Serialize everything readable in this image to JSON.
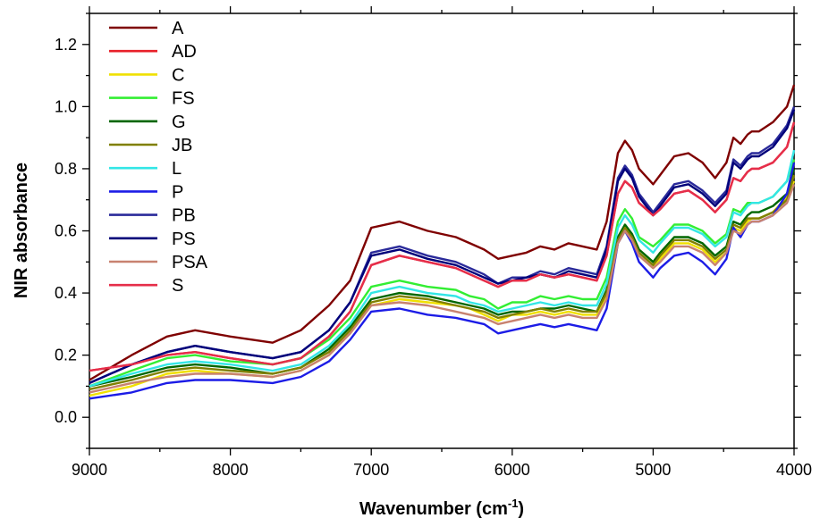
{
  "chart_data": {
    "type": "line",
    "xlabel": "Wavenumber (cm",
    "xlabel_sup": "-1",
    "xlabel_end": ")",
    "ylabel": "NIR absorbance",
    "xlim": [
      9000,
      4000
    ],
    "ylim": [
      -0.1,
      1.3
    ],
    "x_reversed": true,
    "grid": false,
    "legend_position": "top-left",
    "xticks": [
      9000,
      8000,
      7000,
      6000,
      5000,
      4000
    ],
    "yticks": [
      0.0,
      0.2,
      0.4,
      0.6,
      0.8,
      1.0,
      1.2
    ],
    "ytick_labels": [
      "0.0",
      "0.2",
      "0.4",
      "0.6",
      "0.8",
      "1.0",
      "1.2"
    ],
    "x": [
      9000,
      8700,
      8450,
      8250,
      8000,
      7700,
      7500,
      7300,
      7150,
      7000,
      6800,
      6600,
      6400,
      6300,
      6200,
      6100,
      6000,
      5900,
      5800,
      5700,
      5600,
      5500,
      5400,
      5330,
      5250,
      5200,
      5150,
      5100,
      5000,
      4950,
      4850,
      4750,
      4650,
      4560,
      4480,
      4430,
      4380,
      4330,
      4300,
      4250,
      4150,
      4050,
      4000
    ],
    "series": [
      {
        "name": "A",
        "color": "#7f0000",
        "values": [
          0.12,
          0.2,
          0.26,
          0.28,
          0.26,
          0.24,
          0.28,
          0.36,
          0.44,
          0.61,
          0.63,
          0.6,
          0.58,
          0.56,
          0.54,
          0.51,
          0.52,
          0.53,
          0.55,
          0.54,
          0.56,
          0.55,
          0.54,
          0.63,
          0.85,
          0.89,
          0.86,
          0.8,
          0.75,
          0.78,
          0.84,
          0.85,
          0.82,
          0.77,
          0.82,
          0.9,
          0.88,
          0.91,
          0.92,
          0.92,
          0.95,
          1.0,
          1.07
        ]
      },
      {
        "name": "AD",
        "color": "#e8202a",
        "values": [
          0.15,
          0.17,
          0.2,
          0.21,
          0.19,
          0.17,
          0.19,
          0.26,
          0.34,
          0.49,
          0.52,
          0.5,
          0.48,
          0.46,
          0.44,
          0.42,
          0.44,
          0.44,
          0.46,
          0.45,
          0.46,
          0.45,
          0.44,
          0.52,
          0.72,
          0.76,
          0.74,
          0.69,
          0.65,
          0.67,
          0.72,
          0.73,
          0.7,
          0.66,
          0.7,
          0.77,
          0.76,
          0.79,
          0.8,
          0.8,
          0.82,
          0.87,
          0.95
        ]
      },
      {
        "name": "C",
        "color": "#f0e000",
        "values": [
          0.07,
          0.1,
          0.14,
          0.15,
          0.14,
          0.13,
          0.15,
          0.2,
          0.27,
          0.36,
          0.38,
          0.37,
          0.36,
          0.35,
          0.33,
          0.31,
          0.33,
          0.33,
          0.34,
          0.33,
          0.34,
          0.33,
          0.33,
          0.39,
          0.56,
          0.6,
          0.57,
          0.52,
          0.48,
          0.51,
          0.56,
          0.56,
          0.54,
          0.5,
          0.53,
          0.61,
          0.6,
          0.63,
          0.64,
          0.64,
          0.66,
          0.71,
          0.76
        ]
      },
      {
        "name": "FS",
        "color": "#33ee33",
        "values": [
          0.1,
          0.15,
          0.19,
          0.2,
          0.18,
          0.17,
          0.19,
          0.25,
          0.32,
          0.42,
          0.44,
          0.42,
          0.41,
          0.39,
          0.38,
          0.35,
          0.37,
          0.37,
          0.39,
          0.38,
          0.39,
          0.38,
          0.38,
          0.45,
          0.63,
          0.67,
          0.64,
          0.58,
          0.55,
          0.57,
          0.62,
          0.62,
          0.6,
          0.56,
          0.59,
          0.67,
          0.66,
          0.69,
          0.69,
          0.69,
          0.71,
          0.76,
          0.83
        ]
      },
      {
        "name": "G",
        "color": "#006600",
        "values": [
          0.1,
          0.13,
          0.16,
          0.17,
          0.16,
          0.14,
          0.16,
          0.22,
          0.29,
          0.38,
          0.4,
          0.39,
          0.37,
          0.36,
          0.35,
          0.33,
          0.34,
          0.34,
          0.35,
          0.35,
          0.36,
          0.35,
          0.34,
          0.41,
          0.58,
          0.62,
          0.59,
          0.54,
          0.5,
          0.53,
          0.58,
          0.58,
          0.56,
          0.52,
          0.55,
          0.63,
          0.62,
          0.65,
          0.66,
          0.66,
          0.68,
          0.72,
          0.8
        ]
      },
      {
        "name": "JB",
        "color": "#808000",
        "values": [
          0.09,
          0.12,
          0.15,
          0.16,
          0.15,
          0.14,
          0.16,
          0.21,
          0.28,
          0.37,
          0.39,
          0.38,
          0.36,
          0.35,
          0.34,
          0.32,
          0.33,
          0.34,
          0.35,
          0.34,
          0.35,
          0.34,
          0.34,
          0.4,
          0.57,
          0.61,
          0.58,
          0.53,
          0.49,
          0.52,
          0.57,
          0.57,
          0.55,
          0.51,
          0.54,
          0.62,
          0.61,
          0.64,
          0.64,
          0.64,
          0.66,
          0.7,
          0.78
        ]
      },
      {
        "name": "L",
        "color": "#33e6e6",
        "values": [
          0.1,
          0.14,
          0.17,
          0.18,
          0.17,
          0.15,
          0.17,
          0.23,
          0.3,
          0.4,
          0.42,
          0.4,
          0.39,
          0.37,
          0.36,
          0.34,
          0.35,
          0.36,
          0.37,
          0.36,
          0.37,
          0.36,
          0.36,
          0.43,
          0.61,
          0.65,
          0.62,
          0.57,
          0.53,
          0.56,
          0.61,
          0.61,
          0.59,
          0.55,
          0.58,
          0.66,
          0.65,
          0.68,
          0.69,
          0.69,
          0.71,
          0.76,
          0.86
        ]
      },
      {
        "name": "P",
        "color": "#1c1ce6",
        "values": [
          0.06,
          0.08,
          0.11,
          0.12,
          0.12,
          0.11,
          0.13,
          0.18,
          0.25,
          0.34,
          0.35,
          0.33,
          0.32,
          0.31,
          0.3,
          0.27,
          0.28,
          0.29,
          0.3,
          0.29,
          0.3,
          0.29,
          0.28,
          0.35,
          0.56,
          0.6,
          0.56,
          0.5,
          0.45,
          0.48,
          0.52,
          0.53,
          0.5,
          0.46,
          0.51,
          0.61,
          0.58,
          0.62,
          0.63,
          0.63,
          0.65,
          0.72,
          0.82
        ]
      },
      {
        "name": "PB",
        "color": "#2a2a9a",
        "values": [
          0.11,
          0.17,
          0.21,
          0.23,
          0.21,
          0.19,
          0.21,
          0.28,
          0.37,
          0.53,
          0.55,
          0.52,
          0.5,
          0.48,
          0.46,
          0.43,
          0.45,
          0.45,
          0.47,
          0.46,
          0.48,
          0.47,
          0.46,
          0.55,
          0.77,
          0.81,
          0.78,
          0.72,
          0.66,
          0.69,
          0.75,
          0.76,
          0.73,
          0.69,
          0.73,
          0.83,
          0.81,
          0.84,
          0.85,
          0.85,
          0.88,
          0.94,
          1.0
        ]
      },
      {
        "name": "PS",
        "color": "#00007a",
        "values": [
          0.11,
          0.17,
          0.21,
          0.23,
          0.21,
          0.19,
          0.21,
          0.28,
          0.37,
          0.52,
          0.54,
          0.51,
          0.49,
          0.47,
          0.45,
          0.43,
          0.44,
          0.45,
          0.46,
          0.45,
          0.47,
          0.46,
          0.45,
          0.54,
          0.76,
          0.8,
          0.77,
          0.71,
          0.65,
          0.68,
          0.74,
          0.75,
          0.72,
          0.68,
          0.72,
          0.82,
          0.8,
          0.83,
          0.84,
          0.84,
          0.87,
          0.93,
          0.99
        ]
      },
      {
        "name": "PSA",
        "color": "#c88270",
        "values": [
          0.08,
          0.11,
          0.13,
          0.14,
          0.14,
          0.13,
          0.15,
          0.2,
          0.27,
          0.36,
          0.37,
          0.36,
          0.34,
          0.33,
          0.32,
          0.3,
          0.31,
          0.32,
          0.33,
          0.32,
          0.33,
          0.32,
          0.32,
          0.38,
          0.56,
          0.6,
          0.57,
          0.52,
          0.48,
          0.5,
          0.55,
          0.55,
          0.53,
          0.49,
          0.53,
          0.6,
          0.59,
          0.62,
          0.63,
          0.63,
          0.65,
          0.69,
          0.75
        ]
      },
      {
        "name": "S",
        "color": "#e62e4a",
        "values": [
          0.15,
          0.17,
          0.2,
          0.21,
          0.19,
          0.17,
          0.19,
          0.26,
          0.34,
          0.49,
          0.52,
          0.5,
          0.48,
          0.46,
          0.44,
          0.42,
          0.44,
          0.44,
          0.46,
          0.45,
          0.46,
          0.45,
          0.44,
          0.52,
          0.72,
          0.76,
          0.74,
          0.69,
          0.65,
          0.67,
          0.72,
          0.73,
          0.7,
          0.66,
          0.7,
          0.77,
          0.76,
          0.79,
          0.8,
          0.8,
          0.82,
          0.87,
          0.95
        ]
      }
    ]
  }
}
